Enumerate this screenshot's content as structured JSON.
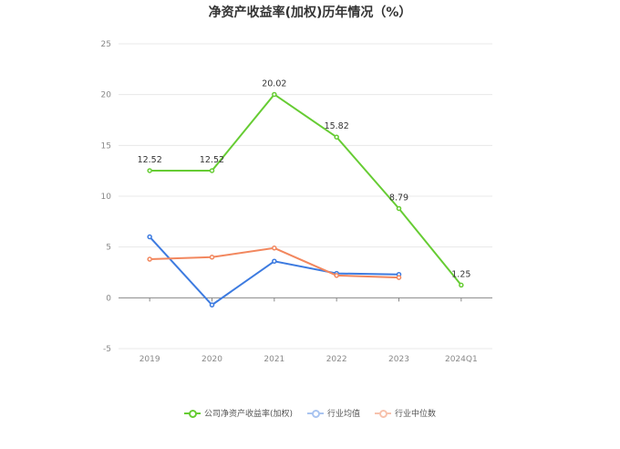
{
  "chart_data": {
    "type": "line",
    "title": "净资产收益率(加权)历年情况（%）",
    "categories": [
      "2019",
      "2020",
      "2021",
      "2022",
      "2023",
      "2024Q1"
    ],
    "ylim": [
      -5,
      25
    ],
    "yticks": [
      -5,
      0,
      5,
      10,
      15,
      20,
      25
    ],
    "grid": true,
    "legend_position": "bottom",
    "series": [
      {
        "name": "公司净资产收益率(加权)",
        "color": "#66cc33",
        "values": [
          12.52,
          12.52,
          20.02,
          15.82,
          8.79,
          1.25
        ],
        "labels": [
          "12.52",
          "12.52",
          "20.02",
          "15.82",
          "8.79",
          "1.25"
        ]
      },
      {
        "name": "行业均值",
        "color": "#3d7be0",
        "values": [
          6.0,
          -0.7,
          3.6,
          2.4,
          2.3,
          null
        ]
      },
      {
        "name": "行业中位数",
        "color": "#f2875e",
        "values": [
          3.8,
          4.0,
          4.9,
          2.2,
          2.0,
          null
        ]
      }
    ]
  }
}
